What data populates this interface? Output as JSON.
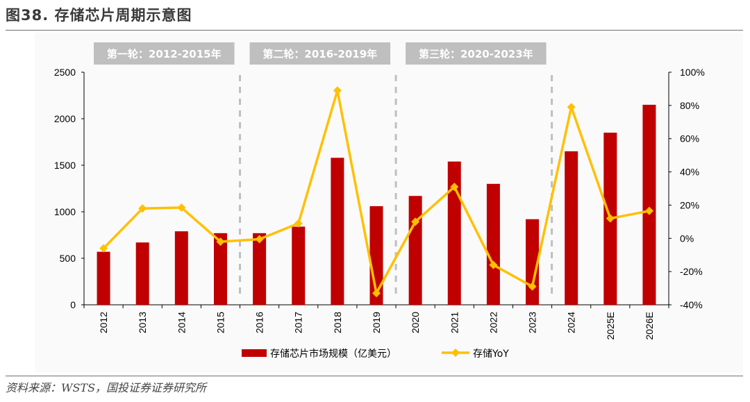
{
  "title": "图38. 存储芯片周期示意图",
  "source": "资料来源：WSTS，国投证券证券研究所",
  "colors": {
    "bar": "#c00000",
    "line": "#ffc000",
    "period_box": "#bfbfbf",
    "divider": "#bfbfbf",
    "axis_text": "#000000"
  },
  "periods": [
    {
      "label": "第一轮：2012-2015年"
    },
    {
      "label": "第二轮：2016-2019年"
    },
    {
      "label": "第三轮：2020-2023年"
    }
  ],
  "chart_data": {
    "type": "bar",
    "title": "",
    "categories": [
      "2012",
      "2013",
      "2014",
      "2015",
      "2016",
      "2017",
      "2018",
      "2019",
      "2020",
      "2021",
      "2022",
      "2023",
      "2024",
      "2025E",
      "2026E"
    ],
    "series": [
      {
        "name": "存储芯片市场规模（亿美元）",
        "type": "bar",
        "axis": "left",
        "values": [
          570,
          670,
          790,
          770,
          770,
          840,
          1580,
          1060,
          1170,
          1540,
          1300,
          920,
          1650,
          1850,
          2150
        ]
      },
      {
        "name": "存储YoY",
        "type": "line",
        "axis": "right",
        "values": [
          -6,
          18,
          18.5,
          -2,
          -0.5,
          9,
          89,
          -33,
          10,
          31,
          -16,
          -29,
          79,
          12,
          16.5
        ]
      }
    ],
    "y_left": {
      "ylim": [
        0,
        2500
      ],
      "ticks": [
        "0",
        "500",
        "1000",
        "1500",
        "2000",
        "2500"
      ]
    },
    "y_right": {
      "ylim": [
        -40,
        100
      ],
      "ticks": [
        "-40%",
        "-20%",
        "0%",
        "20%",
        "40%",
        "60%",
        "80%",
        "100%"
      ]
    },
    "grid": false,
    "legend": "bottom-center"
  }
}
